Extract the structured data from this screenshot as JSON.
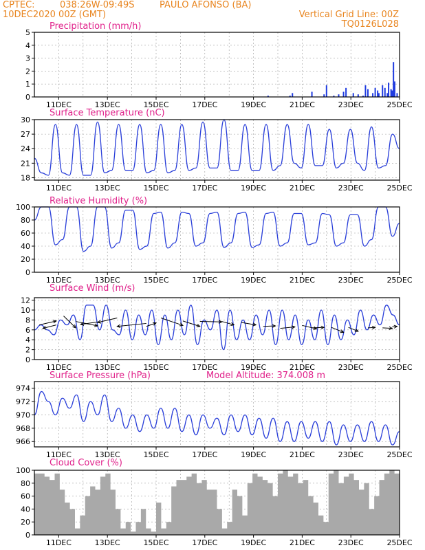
{
  "header": {
    "source": "CPTEC:",
    "coords": "038:26W-09:49S",
    "location": "PAULO AFONSO (BA)",
    "datetime": "10DEC2020 00Z (GMT)",
    "grid_note": "Vertical Grid Line: 00Z",
    "code": "TQ0126L028"
  },
  "model_altitude": "Model Altitude: 374.008 m",
  "x_ticks": [
    "11DEC",
    "13DEC",
    "15DEC",
    "17DEC",
    "19DEC",
    "21DEC",
    "23DEC",
    "25DEC"
  ],
  "colors": {
    "line": "#2a3fd9",
    "bar": "#1f3be0",
    "cloud": "#a9a9a9",
    "title": "#e0208a",
    "header": "#e8841e"
  },
  "chart_data": [
    {
      "type": "bar",
      "title": "Precipitation (mm/h)",
      "x_range_days": [
        10.0,
        25.0
      ],
      "ylim": [
        0,
        5
      ],
      "yticks": [
        0,
        1,
        2,
        3,
        4,
        5
      ],
      "x": [
        19.6,
        20.5,
        20.6,
        21.4,
        21.9,
        22.0,
        22.3,
        22.5,
        22.7,
        22.8,
        23.1,
        23.3,
        23.5,
        23.6,
        23.7,
        23.9,
        24.0,
        24.1,
        24.15,
        24.3,
        24.4,
        24.5,
        24.55,
        24.65,
        24.7,
        24.75,
        24.8,
        24.9
      ],
      "values": [
        0.1,
        0.1,
        0.3,
        0.4,
        0.2,
        0.9,
        0.1,
        0.2,
        0.4,
        0.7,
        0.3,
        0.2,
        0.1,
        0.9,
        0.6,
        0.3,
        0.7,
        0.5,
        0.3,
        0.9,
        0.7,
        0.3,
        1.1,
        0.6,
        0.5,
        2.7,
        1.2,
        0.3
      ]
    },
    {
      "type": "line",
      "title": "Surface Temperature (nC)",
      "x_range_days": [
        10.0,
        25.0
      ],
      "ylim": [
        17.5,
        30
      ],
      "yticks": [
        18,
        21,
        24,
        27,
        30
      ],
      "series": [
        {
          "values": [
            22,
            19,
            18.5,
            29,
            19,
            18.5,
            29,
            18.5,
            18.5,
            29.5,
            19,
            19.5,
            29,
            19.5,
            19.5,
            29,
            19,
            19.5,
            29,
            19,
            19.5,
            29,
            19.5,
            20,
            29.5,
            20,
            20,
            30,
            19.5,
            19.5,
            29,
            19.5,
            19.5,
            29,
            19.5,
            20.5,
            29,
            21,
            20,
            29,
            20.5,
            20.5,
            28,
            20,
            21,
            28,
            21,
            19.5,
            28.5,
            20,
            20.5,
            27,
            24
          ]
        }
      ]
    },
    {
      "type": "line",
      "title": "Relative Humidity (%)",
      "x_range_days": [
        10.0,
        25.0
      ],
      "ylim": [
        0,
        100
      ],
      "yticks": [
        0,
        20,
        40,
        60,
        80,
        100
      ],
      "series": [
        {
          "values": [
            80,
            100,
            100,
            42,
            50,
            100,
            100,
            32,
            40,
            100,
            100,
            37,
            45,
            95,
            95,
            35,
            40,
            90,
            92,
            37,
            45,
            92,
            90,
            40,
            45,
            90,
            92,
            38,
            45,
            90,
            92,
            38,
            42,
            90,
            92,
            40,
            45,
            90,
            90,
            42,
            45,
            90,
            88,
            40,
            45,
            88,
            88,
            40,
            50,
            100,
            100,
            55,
            75
          ]
        }
      ]
    },
    {
      "type": "line",
      "title": "Surface Wind (m/s)",
      "x_range_days": [
        10.0,
        25.0
      ],
      "ylim": [
        0,
        12.5
      ],
      "yticks": [
        0,
        2,
        4,
        6,
        8,
        10,
        12
      ],
      "series": [
        {
          "values": [
            6,
            7,
            6,
            5,
            8,
            7,
            9,
            4,
            11,
            11,
            6,
            11,
            6,
            5,
            10,
            4,
            9,
            5,
            10,
            3,
            9,
            4,
            10,
            5,
            11,
            3,
            8,
            6,
            10,
            2,
            10,
            4,
            8,
            4,
            9,
            5,
            10,
            3,
            10,
            4,
            9,
            3,
            8,
            4,
            10,
            3,
            9,
            4,
            8,
            5,
            10,
            6,
            9,
            7,
            11,
            9,
            7
          ]
        }
      ],
      "wind_arrows": [
        [
          10.2,
          7,
          10.9,
          7.8
        ],
        [
          10.9,
          7,
          10.35,
          6.3
        ],
        [
          11.2,
          8.8,
          11.7,
          6.4
        ],
        [
          11.7,
          7.7,
          12.6,
          6.8
        ],
        [
          12.6,
          7.6,
          11.9,
          7.1
        ],
        [
          13.4,
          8.4,
          12.6,
          7.5
        ],
        [
          14.6,
          7.3,
          13.4,
          6.7
        ],
        [
          14.6,
          6.7,
          15.0,
          7.4
        ],
        [
          15.2,
          8.4,
          16.1,
          6.9
        ],
        [
          16.1,
          7.8,
          16.8,
          6.7
        ],
        [
          16.8,
          7.7,
          17.7,
          7.6
        ],
        [
          17.7,
          7.7,
          18.2,
          7.0
        ],
        [
          18.5,
          7.5,
          19.1,
          7.0
        ],
        [
          19.4,
          6.7,
          19.9,
          6.8
        ],
        [
          20.1,
          6.3,
          20.7,
          6.6
        ],
        [
          21.0,
          6.9,
          21.6,
          6.2
        ],
        [
          21.4,
          6.4,
          21.9,
          6.5
        ],
        [
          22.2,
          6.5,
          22.7,
          5.5
        ],
        [
          22.9,
          6.5,
          23.3,
          5.7
        ],
        [
          23.7,
          6.4,
          24.0,
          6.5
        ],
        [
          24.3,
          6.4,
          24.7,
          6.3
        ],
        [
          24.7,
          6.6,
          24.9,
          6.7
        ]
      ]
    },
    {
      "type": "line",
      "title": "Surface Pressure (hPa)",
      "x_range_days": [
        10.0,
        25.0
      ],
      "ylim": [
        965.2,
        975
      ],
      "yticks": [
        966,
        968,
        970,
        972,
        974
      ],
      "series": [
        {
          "values": [
            970,
            973.5,
            972,
            970,
            972.5,
            971,
            973,
            969,
            972,
            970,
            973,
            969,
            971,
            968,
            970,
            967.5,
            970,
            968,
            971,
            968,
            971,
            967.5,
            970,
            967,
            970,
            968,
            969.5,
            967,
            970,
            967.5,
            970,
            967,
            969.5,
            966.5,
            969.5,
            966,
            969,
            966,
            969,
            966.5,
            969,
            966,
            969,
            965.5,
            968.5,
            966,
            968.5,
            966,
            969,
            966,
            968.5,
            965.5,
            967.5
          ]
        }
      ]
    },
    {
      "type": "area",
      "title": "Cloud Cover (%)",
      "x_range_days": [
        10.0,
        25.0
      ],
      "ylim": [
        0,
        100
      ],
      "yticks": [
        0,
        20,
        40,
        60,
        80,
        100
      ],
      "series": [
        {
          "values": [
            95,
            95,
            90,
            85,
            95,
            70,
            50,
            40,
            10,
            30,
            60,
            75,
            70,
            90,
            95,
            70,
            40,
            10,
            20,
            5,
            20,
            40,
            10,
            5,
            50,
            10,
            20,
            75,
            85,
            85,
            90,
            95,
            80,
            85,
            70,
            70,
            40,
            10,
            20,
            70,
            60,
            30,
            80,
            95,
            90,
            85,
            80,
            60,
            95,
            100,
            90,
            95,
            80,
            85,
            60,
            50,
            30,
            20,
            95,
            100,
            80,
            90,
            95,
            85,
            70,
            80,
            40,
            60,
            85,
            95,
            100,
            95
          ]
        }
      ]
    }
  ]
}
